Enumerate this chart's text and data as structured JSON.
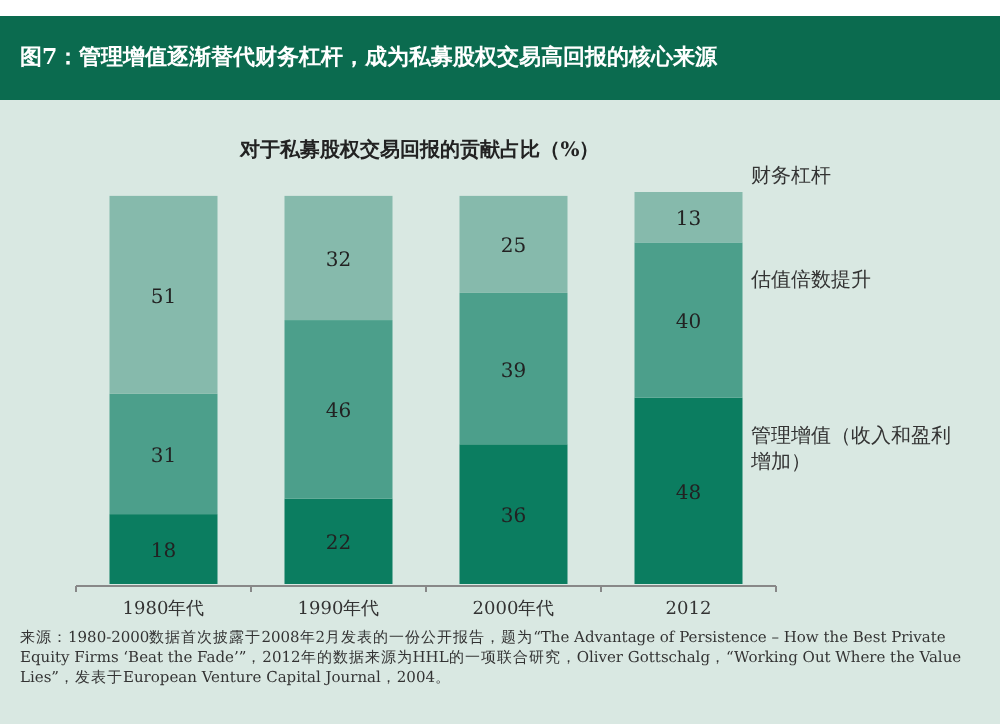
{
  "chart_data": {
    "type": "bar",
    "stacked": true,
    "data_labels": true,
    "legend": "right",
    "title": "图7：管理增值逐渐替代财务杠杆，成为私募股权交易高回报的核心来源",
    "subtitle": "对于私募股权交易回报的贡献占比（%）",
    "categories": [
      "1980年代",
      "1990年代",
      "2000年代",
      "2012"
    ],
    "series": [
      {
        "name": "管理增值（收入和盈利增加）",
        "color": "#0b7d60",
        "values": [
          18,
          22,
          36,
          48
        ]
      },
      {
        "name": "估值倍数提升",
        "color": "#4c9f8b",
        "values": [
          31,
          46,
          39,
          40
        ]
      },
      {
        "name": "财务杠杆",
        "color": "#86baac",
        "values": [
          51,
          32,
          25,
          13
        ]
      }
    ],
    "annotations": [
      "来源：1980-2000数据首次披露于2008年2月发表的一份公开报告，题为“The Advantage of Persistence – How the Best Private Equity Firms ‘Beat the Fade’”，2012年的数据来源为HHL的一项联合研究，Oliver Gottschalg，“Working Out Where the Value Lies”，发表于European Venture Capital Journal，2004。"
    ]
  }
}
